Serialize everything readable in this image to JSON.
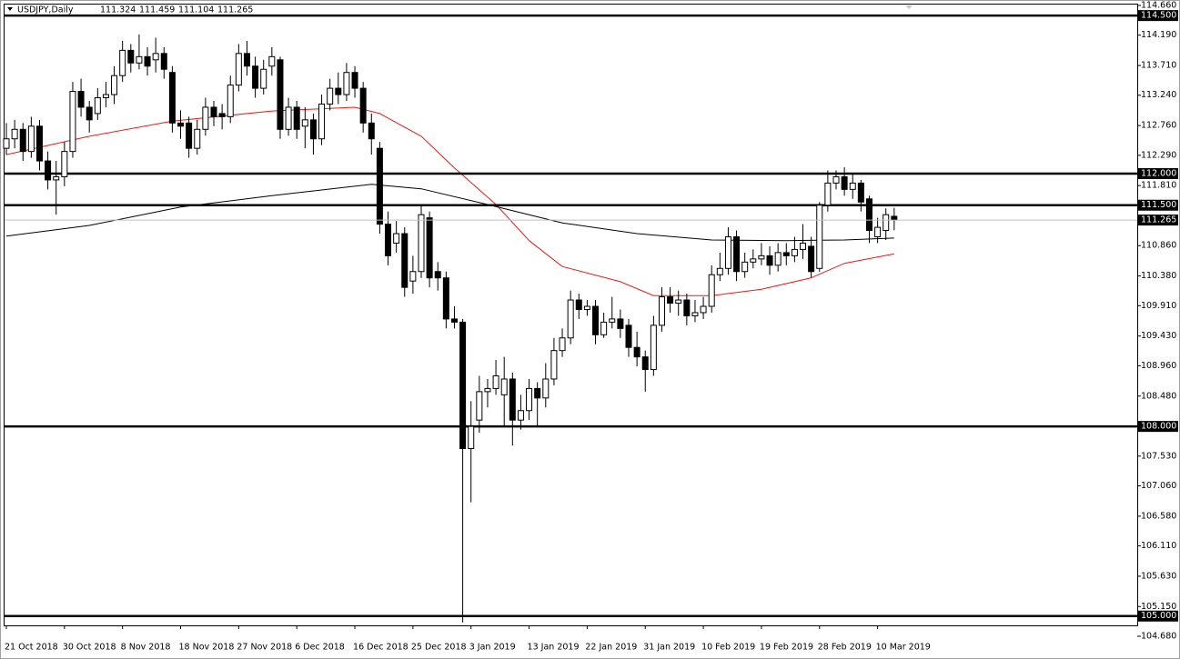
{
  "chart_data": {
    "type": "candlestick",
    "title": "USDJPY,Daily",
    "categories": [
      "21 Oct 2018",
      null,
      null,
      null,
      null,
      null,
      null,
      "30 Oct 2018",
      null,
      null,
      null,
      null,
      null,
      null,
      "8 Nov 2018",
      null,
      null,
      null,
      null,
      null,
      null,
      "18 Nov 2018",
      null,
      null,
      null,
      null,
      null,
      null,
      "27 Nov 2018",
      null,
      null,
      null,
      null,
      null,
      null,
      "6 Dec 2018",
      null,
      null,
      null,
      null,
      null,
      null,
      "16 Dec 2018",
      null,
      null,
      null,
      null,
      null,
      null,
      "25 Dec 2018",
      null,
      null,
      null,
      null,
      null,
      null,
      "3 Jan 2019",
      null,
      null,
      null,
      null,
      null,
      null,
      "13 Jan 2019",
      null,
      null,
      null,
      null,
      null,
      null,
      "22 Jan 2019",
      null,
      null,
      null,
      null,
      null,
      null,
      "31 Jan 2019",
      null,
      null,
      null,
      null,
      null,
      null,
      "10 Feb 2019",
      null,
      null,
      null,
      null,
      null,
      null,
      "19 Feb 2019",
      null,
      null,
      null,
      null,
      null,
      null,
      "28 Feb 2019",
      null,
      null,
      null,
      null,
      null,
      null,
      "10 Mar 2019",
      null,
      null
    ],
    "open": [
      112.4,
      112.55,
      112.7,
      112.35,
      112.75,
      112.2,
      111.9,
      111.95,
      112.35,
      113.3,
      113.05,
      112.95,
      113.2,
      113.25,
      113.55,
      113.95,
      113.75,
      113.85,
      113.8,
      113.9,
      113.6,
      112.8,
      112.8,
      112.4,
      112.7,
      113.05,
      112.95,
      112.9,
      113.4,
      113.9,
      113.7,
      113.35,
      113.7,
      113.8,
      112.7,
      113.05,
      112.75,
      112.85,
      112.55,
      113.1,
      113.35,
      113.25,
      113.6,
      113.35,
      112.8,
      112.4,
      111.2,
      110.9,
      111.05,
      110.3,
      110.45,
      111.3,
      110.45,
      110.35,
      109.7,
      109.65,
      107.65,
      108.1,
      108.55,
      108.6,
      108.5,
      108.75,
      108.1,
      108.25,
      108.6,
      108.45,
      108.75,
      109.2,
      109.4,
      110.0,
      109.85,
      109.9,
      109.45,
      109.65,
      109.7,
      109.6,
      109.25,
      109.1,
      108.9,
      109.6,
      110.05,
      109.95,
      110.0,
      109.75,
      109.8,
      109.9,
      110.4,
      110.5,
      111.0,
      110.45,
      110.6,
      110.65,
      110.7,
      110.55,
      110.75,
      110.7,
      110.8,
      110.85,
      110.5,
      111.5,
      111.85,
      111.95,
      111.75,
      111.85,
      111.6,
      111.0,
      111.1,
      111.324
    ],
    "high": [
      112.8,
      112.85,
      112.8,
      112.9,
      112.85,
      112.35,
      112.2,
      112.5,
      113.45,
      113.5,
      113.15,
      113.35,
      113.45,
      113.7,
      114.1,
      114.05,
      114.2,
      114.0,
      114.15,
      114.0,
      113.7,
      113.0,
      112.9,
      112.85,
      113.2,
      113.15,
      113.1,
      113.55,
      114.05,
      114.1,
      113.85,
      113.8,
      114.0,
      113.85,
      113.2,
      113.15,
      113.05,
      112.95,
      113.25,
      113.5,
      113.6,
      113.75,
      113.7,
      113.45,
      112.95,
      112.5,
      111.4,
      111.25,
      111.15,
      110.7,
      111.5,
      111.4,
      110.6,
      110.45,
      109.9,
      109.7,
      108.4,
      108.8,
      108.75,
      109.05,
      109.1,
      108.85,
      108.5,
      108.75,
      108.7,
      109.0,
      109.4,
      109.55,
      110.15,
      110.1,
      110.0,
      110.0,
      109.8,
      110.05,
      109.85,
      109.7,
      109.5,
      109.2,
      109.75,
      110.2,
      110.2,
      110.15,
      110.1,
      110.0,
      110.05,
      110.55,
      110.75,
      111.15,
      111.1,
      110.75,
      110.8,
      110.9,
      110.85,
      110.9,
      110.9,
      111.0,
      111.2,
      111.0,
      111.55,
      112.05,
      112.05,
      112.1,
      112.0,
      111.9,
      111.65,
      111.3,
      111.45,
      111.459
    ],
    "low": [
      112.3,
      112.4,
      112.2,
      112.25,
      112.05,
      111.75,
      111.35,
      111.8,
      112.25,
      112.9,
      112.65,
      112.85,
      113.05,
      113.1,
      113.45,
      113.6,
      113.65,
      113.55,
      113.6,
      113.5,
      112.65,
      112.55,
      112.25,
      112.3,
      112.6,
      112.75,
      112.7,
      112.8,
      113.3,
      113.55,
      113.2,
      113.25,
      113.55,
      112.55,
      112.6,
      112.55,
      112.4,
      112.3,
      112.45,
      113.0,
      113.1,
      113.15,
      113.2,
      112.65,
      112.3,
      111.05,
      110.55,
      110.75,
      110.05,
      110.1,
      110.35,
      110.2,
      110.15,
      109.55,
      109.55,
      104.9,
      106.8,
      107.9,
      108.3,
      108.5,
      108.0,
      107.7,
      107.95,
      108.1,
      108.0,
      108.3,
      108.65,
      109.1,
      109.3,
      109.7,
      109.75,
      109.3,
      109.4,
      109.55,
      109.4,
      109.1,
      108.95,
      108.55,
      108.8,
      109.5,
      109.8,
      109.75,
      109.6,
      109.65,
      109.7,
      109.8,
      110.3,
      110.4,
      110.3,
      110.35,
      110.5,
      110.55,
      110.4,
      110.45,
      110.55,
      110.6,
      110.65,
      110.35,
      110.45,
      111.4,
      111.75,
      111.65,
      111.6,
      111.4,
      110.9,
      110.9,
      110.95,
      111.104
    ],
    "close": [
      112.55,
      112.7,
      112.35,
      112.75,
      112.2,
      111.9,
      111.95,
      112.35,
      113.3,
      113.05,
      112.85,
      113.2,
      113.25,
      113.55,
      113.95,
      113.75,
      113.85,
      113.7,
      113.9,
      113.65,
      112.8,
      112.75,
      112.4,
      112.7,
      113.05,
      112.9,
      112.9,
      113.4,
      113.9,
      113.7,
      113.35,
      113.65,
      113.85,
      112.7,
      113.05,
      112.7,
      112.85,
      112.55,
      113.1,
      113.35,
      113.25,
      113.6,
      113.35,
      112.8,
      112.55,
      111.2,
      110.7,
      111.05,
      110.2,
      110.45,
      111.35,
      110.35,
      110.35,
      109.7,
      109.65,
      107.65,
      108.0,
      108.55,
      108.6,
      108.8,
      108.75,
      108.1,
      108.25,
      108.6,
      108.45,
      108.75,
      109.2,
      109.4,
      110.0,
      109.85,
      109.9,
      109.45,
      109.65,
      109.7,
      109.55,
      109.25,
      109.1,
      108.9,
      109.6,
      110.05,
      109.95,
      110.0,
      109.75,
      109.8,
      109.9,
      110.4,
      110.5,
      111.0,
      110.45,
      110.6,
      110.65,
      110.7,
      110.55,
      110.75,
      110.7,
      110.8,
      110.9,
      110.45,
      111.5,
      111.85,
      111.95,
      111.75,
      111.85,
      111.55,
      111.1,
      111.15,
      111.35,
      111.265
    ],
    "bull_color": "#ffffff",
    "bear_color": "#000000",
    "ma": [
      {
        "color": "#e0201b",
        "x": [
          0,
          10,
          20,
          32,
          42,
          45,
          50,
          54,
          59,
          63,
          67,
          74,
          78,
          85,
          91,
          97,
          101,
          107
        ],
        "values": [
          112.3,
          112.59,
          112.83,
          112.99,
          113.05,
          112.95,
          112.59,
          112.09,
          111.51,
          110.94,
          110.53,
          110.29,
          110.07,
          110.07,
          110.17,
          110.35,
          110.58,
          110.73
        ]
      },
      {
        "color": "#000000",
        "x": [
          0,
          10,
          21,
          32,
          44,
          50,
          58,
          67,
          76,
          85,
          94,
          101,
          107
        ],
        "values": [
          111.01,
          111.18,
          111.47,
          111.65,
          111.83,
          111.76,
          111.51,
          111.22,
          111.05,
          110.95,
          110.94,
          110.95,
          110.98
        ]
      }
    ],
    "levels": [
      {
        "value": 114.5,
        "label": "114.500"
      },
      {
        "value": 112,
        "label": "112.000"
      },
      {
        "value": 111.5,
        "label": "111.500"
      },
      {
        "value": 108,
        "label": "108.000"
      },
      {
        "value": 105,
        "label": "105.000"
      }
    ],
    "ylim": [
      104.68,
      114.66
    ],
    "yticks": [
      {
        "value": 114.66,
        "label": "114.660"
      },
      {
        "value": 114.19,
        "label": "114.190"
      },
      {
        "value": 113.71,
        "label": "113.710"
      },
      {
        "value": 113.24,
        "label": "113.240"
      },
      {
        "value": 112.76,
        "label": "112.760"
      },
      {
        "value": 112.29,
        "label": "112.290"
      },
      {
        "value": 111.81,
        "label": "111.810"
      },
      {
        "value": 110.86,
        "label": "110.860"
      },
      {
        "value": 110.38,
        "label": "110.380"
      },
      {
        "value": 109.91,
        "label": "109.910"
      },
      {
        "value": 109.43,
        "label": "109.430"
      },
      {
        "value": 108.96,
        "label": "108.960"
      },
      {
        "value": 108.48,
        "label": "108.480"
      },
      {
        "value": 107.53,
        "label": "107.530"
      },
      {
        "value": 107.06,
        "label": "107.060"
      },
      {
        "value": 106.58,
        "label": "106.580"
      },
      {
        "value": 106.11,
        "label": "106.110"
      },
      {
        "value": 105.63,
        "label": "105.630"
      },
      {
        "value": 105.15,
        "label": "105.150"
      },
      {
        "value": 104.68,
        "label": "104.680"
      }
    ]
  }
}
